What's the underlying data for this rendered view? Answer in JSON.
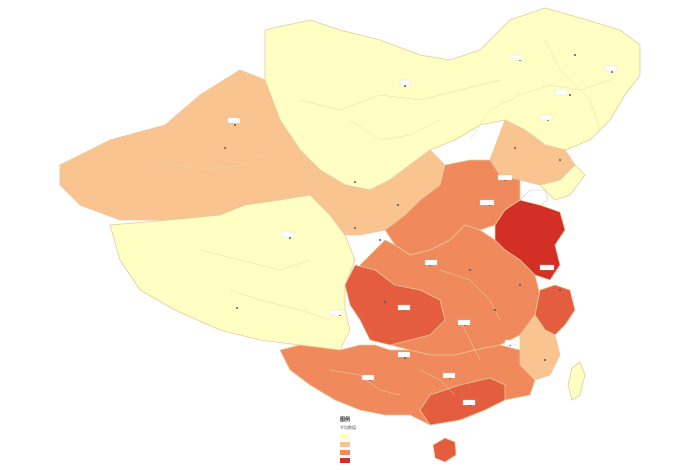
{
  "colors": {
    "background": "#ffffff",
    "lowest": "#ffffc4",
    "low": "#f9c48f",
    "mid": "#f08a5d",
    "high": "#e55d3f",
    "highest": "#d32f24",
    "border": "#e7c99e"
  },
  "legend": {
    "title": "图例",
    "subtitle": "平均数值",
    "items": []
  }
}
